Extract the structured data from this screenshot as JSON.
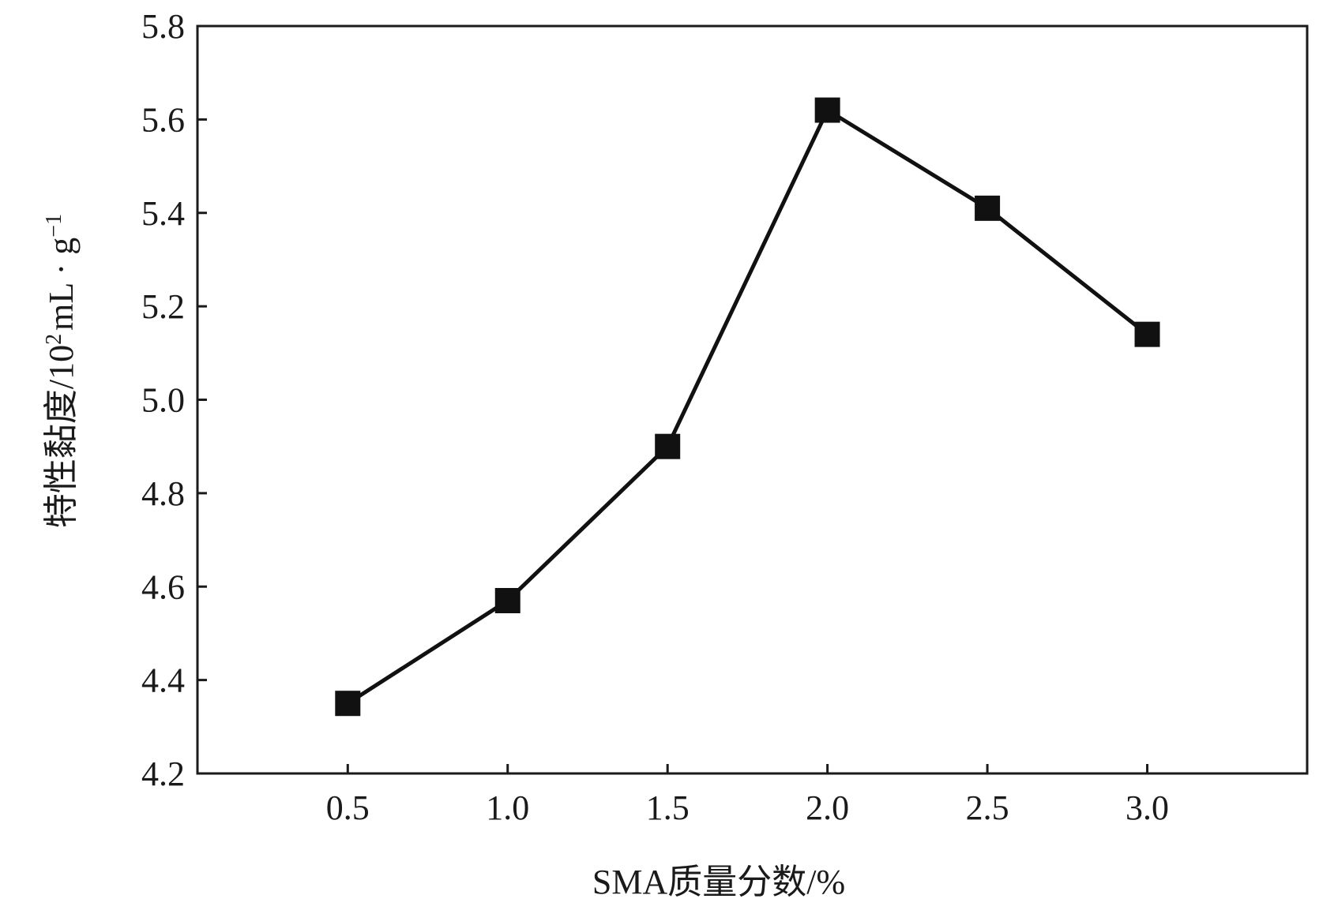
{
  "chart_data": {
    "type": "line",
    "xlabel": "SMA质量分数/%",
    "ylabel": {
      "prefix": "特性黏度/10",
      "sup1": "2",
      "mid": "mL · g",
      "sup2": "−1"
    },
    "xlim": [
      0.03,
      3.5
    ],
    "ylim": [
      4.2,
      5.8
    ],
    "x_ticks": [
      0.5,
      1.0,
      1.5,
      2.0,
      2.5,
      3.0
    ],
    "x_tick_labels": [
      "0.5",
      "1.0",
      "1.5",
      "2.0",
      "2.5",
      "3.0"
    ],
    "y_ticks": [
      4.2,
      4.4,
      4.6,
      4.8,
      5.0,
      5.2,
      5.4,
      5.6,
      5.8
    ],
    "y_tick_labels": [
      "4.2",
      "4.4",
      "4.6",
      "4.8",
      "5.0",
      "5.2",
      "5.4",
      "5.6",
      "5.8"
    ],
    "grid": false,
    "series": [
      {
        "marker": "square",
        "color": "#111111",
        "x": [
          0.5,
          1.0,
          1.5,
          2.0,
          2.5,
          3.0
        ],
        "y": [
          4.35,
          4.57,
          4.9,
          5.62,
          5.41,
          5.14
        ]
      }
    ]
  }
}
